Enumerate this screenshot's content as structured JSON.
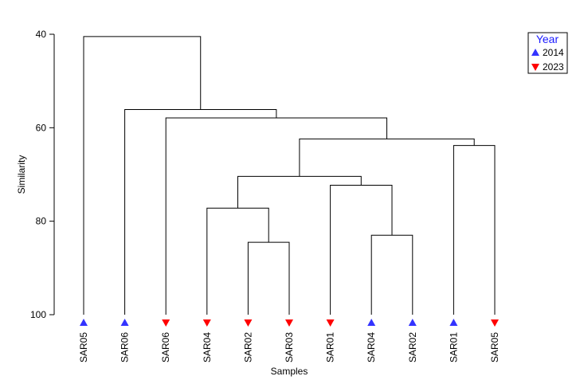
{
  "chart_data": {
    "type": "dendrogram",
    "xlabel": "Samples",
    "ylabel": "Similarity",
    "yticks": [
      40,
      60,
      80,
      100
    ],
    "ylim": [
      40,
      100
    ],
    "axis_direction": "similarity increases downward",
    "leaves": [
      {
        "label": "SAR05",
        "year": "2014"
      },
      {
        "label": "SAR06",
        "year": "2014"
      },
      {
        "label": "SAR06",
        "year": "2023"
      },
      {
        "label": "SAR04",
        "year": "2023"
      },
      {
        "label": "SAR02",
        "year": "2023"
      },
      {
        "label": "SAR03",
        "year": "2023"
      },
      {
        "label": "SAR01",
        "year": "2023"
      },
      {
        "label": "SAR04",
        "year": "2014"
      },
      {
        "label": "SAR02",
        "year": "2014"
      },
      {
        "label": "SAR01",
        "year": "2014"
      },
      {
        "label": "SAR05",
        "year": "2023"
      }
    ],
    "merges": [
      {
        "id": "m1",
        "left": 4,
        "right": 5,
        "similarity": 84.5
      },
      {
        "id": "m2",
        "left": 7,
        "right": 8,
        "similarity": 83.0
      },
      {
        "id": "m3",
        "left": 3,
        "right": "m1",
        "similarity": 77.2
      },
      {
        "id": "m4",
        "left": 6,
        "right": "m2",
        "similarity": 72.3
      },
      {
        "id": "m5",
        "left": "m3",
        "right": "m4",
        "similarity": 70.4
      },
      {
        "id": "m6",
        "left": 9,
        "right": 10,
        "similarity": 63.8
      },
      {
        "id": "m7",
        "left": "m5",
        "right": "m6",
        "similarity": 62.4
      },
      {
        "id": "m8",
        "left": 2,
        "right": "m7",
        "similarity": 57.9
      },
      {
        "id": "m9",
        "left": 1,
        "right": "m8",
        "similarity": 56.1
      },
      {
        "id": "m10",
        "left": 0,
        "right": "m9",
        "similarity": 40.5
      }
    ],
    "legend": {
      "title": "Year",
      "position": "top-right",
      "entries": [
        {
          "label": "2014",
          "marker": "triangle-up",
          "color": "#3333ff"
        },
        {
          "label": "2023",
          "marker": "triangle-down",
          "color": "#ff0000"
        }
      ]
    },
    "colors": {
      "2014": "#3333ff",
      "2023": "#ff0000",
      "lines": "#000000",
      "legend_title": "#1a1aff"
    }
  }
}
